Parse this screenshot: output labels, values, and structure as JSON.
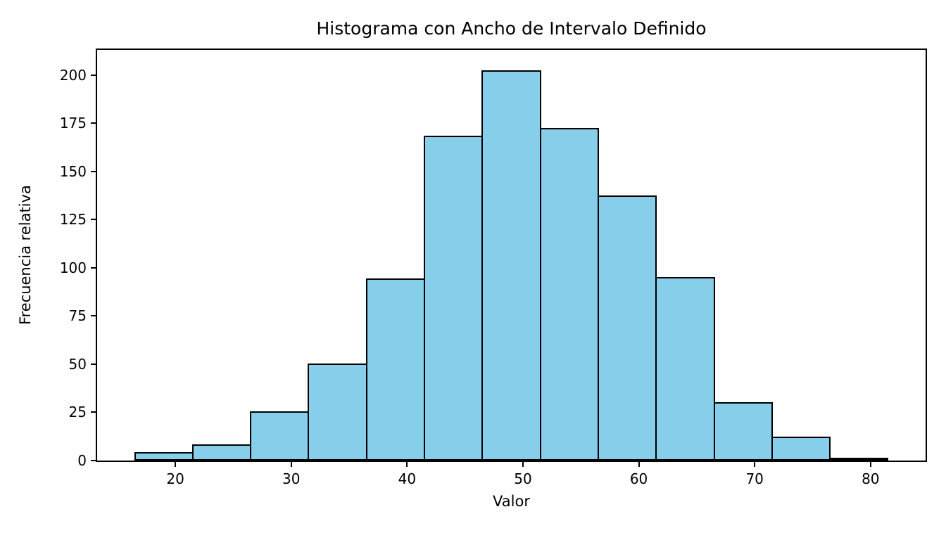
{
  "colors": {
    "background": "#FFFFFF",
    "bar_fill": "#87CEEB",
    "bar_edge": "#000000",
    "axis": "#000000",
    "text": "#000000"
  },
  "chart_data": {
    "type": "bar",
    "subtype": "histogram",
    "title": "Histograma con Ancho de Intervalo Definido",
    "xlabel": "Valor",
    "ylabel": "Frecuencia relativa",
    "bin_width": 5,
    "bin_edges": [
      16.5,
      21.5,
      26.5,
      31.5,
      36.5,
      41.5,
      46.5,
      51.5,
      56.5,
      61.5,
      66.5,
      71.5,
      76.5,
      81.5
    ],
    "values": [
      4,
      8,
      25,
      50,
      94,
      168,
      202,
      172,
      137,
      95,
      30,
      12,
      1
    ],
    "x_ticks": [
      20,
      30,
      40,
      50,
      60,
      70,
      80
    ],
    "y_ticks": [
      0,
      25,
      50,
      75,
      100,
      125,
      150,
      175,
      200
    ],
    "xlim": [
      13.25,
      84.75
    ],
    "ylim": [
      0,
      213
    ],
    "grid": false,
    "legend": null
  }
}
